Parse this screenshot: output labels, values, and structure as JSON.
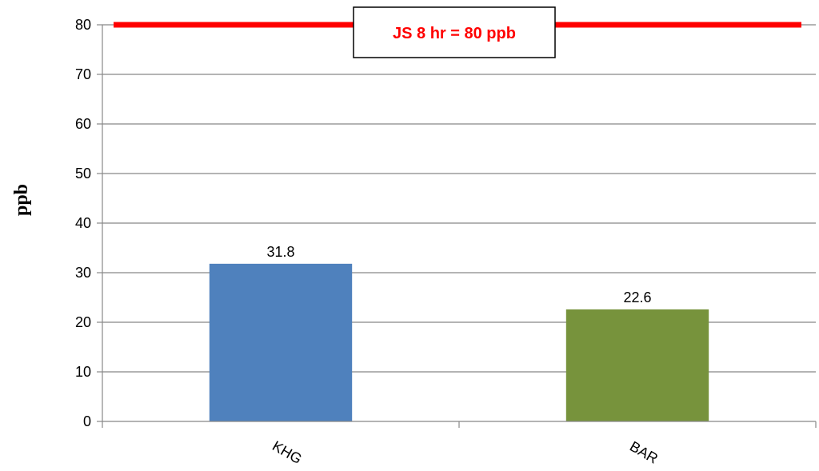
{
  "chart_data": {
    "type": "bar",
    "categories": [
      "KHG",
      "BAR"
    ],
    "values": [
      31.8,
      22.6
    ],
    "data_labels": [
      "31.8",
      "22.6"
    ],
    "bar_colors": [
      "#4f81bd",
      "#77933c"
    ],
    "title": "",
    "xlabel": "",
    "ylabel": "ppb",
    "ylim": [
      0,
      80
    ],
    "yticks": [
      0,
      10,
      20,
      30,
      40,
      50,
      60,
      70,
      80
    ],
    "grid": true,
    "threshold": {
      "value": 80,
      "label": "JS 8 hr = 80 ppb",
      "color": "#ff0000"
    }
  }
}
